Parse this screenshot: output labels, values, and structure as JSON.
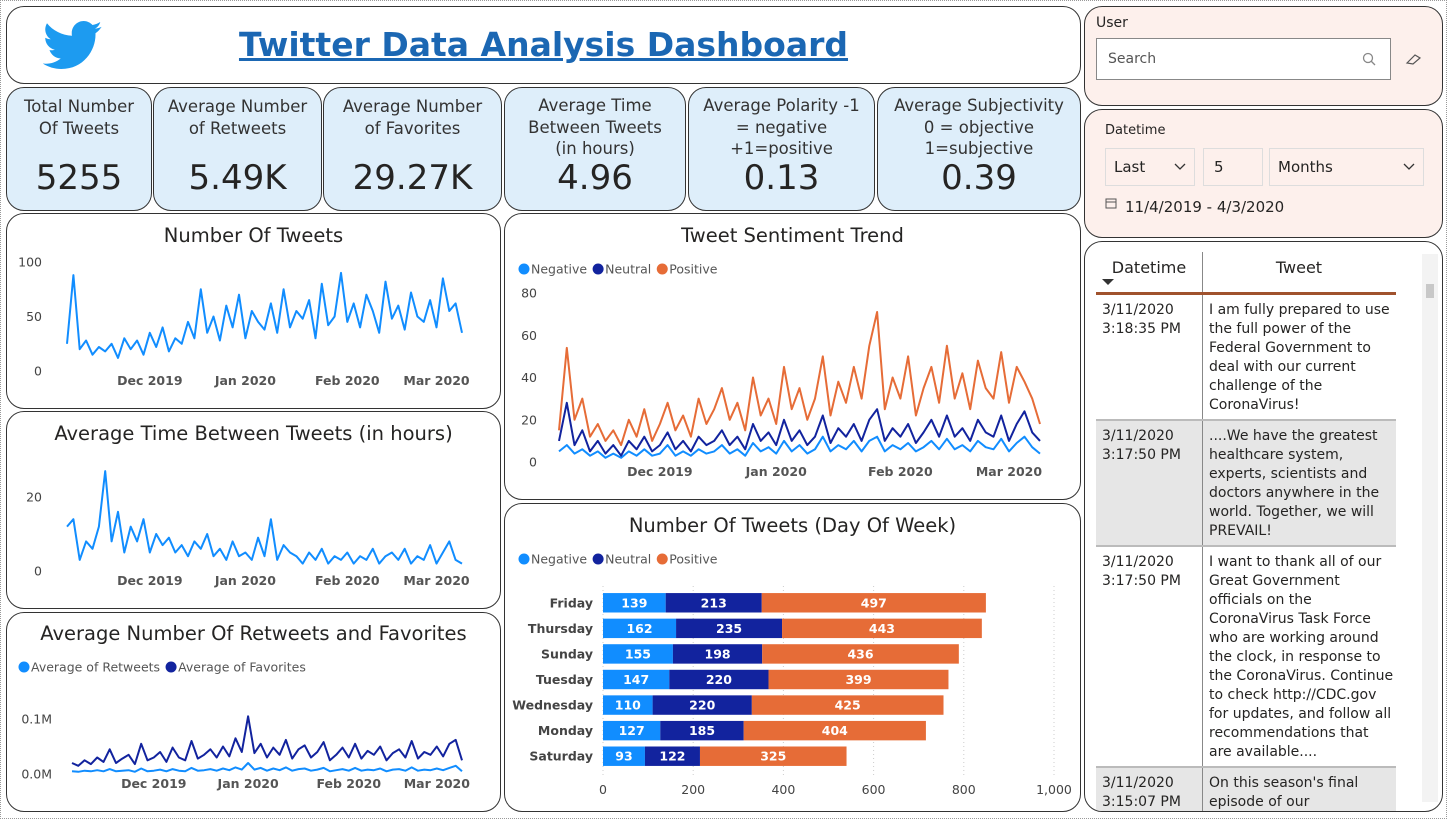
{
  "header": {
    "title": "Twitter Data Analysis Dashboard"
  },
  "kpis": [
    {
      "label": [
        "Total Number",
        "Of Tweets"
      ],
      "value": 5255
    },
    {
      "label": [
        "Average Number",
        "of Retweets"
      ],
      "value": "5.49K"
    },
    {
      "label": [
        "Average Number",
        "of Favorites"
      ],
      "value": "29.27K"
    },
    {
      "label": [
        "Average Time",
        "Between Tweets",
        "(in hours)"
      ],
      "value": 4.96
    },
    {
      "label": [
        "Average Polarity -1",
        "= negative",
        "+1=positive"
      ],
      "value": 0.13
    },
    {
      "label": [
        "Average Subjectivity",
        "0 = objective",
        "1=subjective"
      ],
      "value": 0.39
    }
  ],
  "filters": {
    "user": {
      "title": "User",
      "placeholder": "Search"
    },
    "datetime": {
      "title": "Datetime",
      "mode": "Last",
      "count": 5,
      "unit": "Months",
      "range": "11/4/2019 - 4/3/2020"
    }
  },
  "table": {
    "columns": [
      "Datetime",
      "Tweet"
    ],
    "rows": [
      [
        "3/11/2020 3:18:35 PM",
        "I am fully prepared to use the full power of the Federal Government to deal with our current challenge of the CoronaVirus!"
      ],
      [
        "3/11/2020 3:17:50 PM",
        "....We have the greatest healthcare system, experts, scientists and doctors anywhere in the world. Together, we will PREVAIL!"
      ],
      [
        "3/11/2020 3:17:50 PM",
        "I want to thank all of our Great Government officials on the CoronaVirus Task Force who are working around the clock, in response to the CoronaVirus. Continue to check http://CDC.gov for updates, and follow all recommendations that are available...."
      ],
      [
        "3/11/2020 3:15:07 PM",
        "On this season's final episode of our #NASAExplorers series:"
      ]
    ]
  },
  "chart_data": [
    {
      "type": "line",
      "title": "Number Of Tweets",
      "color": "#118dff",
      "categories": [
        null,
        null,
        null,
        null,
        null,
        null,
        null,
        null,
        null,
        null,
        null,
        null,
        null,
        "Dec 2019",
        null,
        null,
        null,
        null,
        null,
        null,
        null,
        null,
        null,
        null,
        null,
        null,
        null,
        null,
        "Jan 2020",
        null,
        null,
        null,
        null,
        null,
        null,
        null,
        null,
        null,
        null,
        null,
        null,
        null,
        null,
        null,
        "Feb 2020",
        null,
        null,
        null,
        null,
        null,
        null,
        null,
        null,
        null,
        null,
        null,
        null,
        null,
        "Mar 2020",
        null,
        null,
        null,
        null
      ],
      "values": [
        25,
        88,
        20,
        28,
        15,
        22,
        18,
        25,
        12,
        30,
        20,
        28,
        15,
        35,
        22,
        40,
        18,
        30,
        25,
        45,
        30,
        75,
        35,
        50,
        28,
        60,
        40,
        70,
        30,
        55,
        45,
        38,
        62,
        35,
        75,
        40,
        55,
        48,
        65,
        30,
        80,
        42,
        50,
        90,
        45,
        62,
        40,
        70,
        55,
        35,
        82,
        48,
        60,
        38,
        72,
        50,
        45,
        65,
        40,
        85,
        55,
        62,
        35
      ],
      "ylim": [
        0,
        100
      ],
      "yticks": [
        0,
        50,
        100
      ]
    },
    {
      "type": "line",
      "title": "Average Time Between Tweets (in hours)",
      "color": "#118dff",
      "categories": [
        null,
        null,
        null,
        null,
        null,
        null,
        null,
        null,
        null,
        null,
        null,
        null,
        null,
        "Dec 2019",
        null,
        null,
        null,
        null,
        null,
        null,
        null,
        null,
        null,
        null,
        null,
        null,
        null,
        null,
        "Jan 2020",
        null,
        null,
        null,
        null,
        null,
        null,
        null,
        null,
        null,
        null,
        null,
        null,
        null,
        null,
        null,
        "Feb 2020",
        null,
        null,
        null,
        null,
        null,
        null,
        null,
        null,
        null,
        null,
        null,
        null,
        null,
        "Mar 2020",
        null,
        null,
        null,
        null
      ],
      "values": [
        12,
        14,
        3,
        8,
        6,
        12,
        27,
        8,
        16,
        5,
        12,
        8,
        14,
        5,
        10,
        7,
        9,
        5,
        7,
        4,
        8,
        6,
        10,
        4,
        6,
        3,
        8,
        4,
        5,
        3,
        9,
        4,
        14,
        3,
        7,
        5,
        4,
        2,
        5,
        3,
        6,
        2,
        4,
        3,
        5,
        2,
        4,
        3,
        6,
        2,
        4,
        5,
        3,
        6,
        2,
        4,
        3,
        7,
        2,
        5,
        8,
        3,
        2
      ],
      "ylim": [
        0,
        30
      ],
      "yticks": [
        0,
        20
      ]
    },
    {
      "type": "line",
      "title": "Average Number Of Retweets and Favorites",
      "legend": "top-left",
      "categories": [
        null,
        null,
        null,
        null,
        null,
        null,
        null,
        null,
        null,
        null,
        null,
        null,
        null,
        "Dec 2019",
        null,
        null,
        null,
        null,
        null,
        null,
        null,
        null,
        null,
        null,
        null,
        null,
        null,
        null,
        "Jan 2020",
        null,
        null,
        null,
        null,
        null,
        null,
        null,
        null,
        null,
        null,
        null,
        null,
        null,
        null,
        null,
        "Feb 2020",
        null,
        null,
        null,
        null,
        null,
        null,
        null,
        null,
        null,
        null,
        null,
        null,
        null,
        "Mar 2020",
        null,
        null,
        null,
        null
      ],
      "series": [
        {
          "name": "Average of Retweets",
          "color": "#118dff",
          "values": [
            5000,
            4000,
            6000,
            5000,
            7000,
            5000,
            9000,
            5000,
            6000,
            7000,
            4000,
            10000,
            5000,
            6000,
            8000,
            5000,
            9000,
            6000,
            5000,
            11000,
            6000,
            7000,
            9000,
            6000,
            10000,
            7000,
            12000,
            8000,
            20000,
            8000,
            11000,
            6000,
            10000,
            7000,
            12000,
            6000,
            9000,
            10000,
            6000,
            8000,
            11000,
            5000,
            7000,
            9000,
            6000,
            11000,
            6000,
            8000,
            7000,
            10000,
            5000,
            8000,
            9000,
            6000,
            12000,
            6000,
            8000,
            7000,
            10000,
            7000,
            11000,
            15000,
            5000
          ]
        },
        {
          "name": "Average of Favorites",
          "color": "#12239e",
          "values": [
            20000,
            15000,
            25000,
            18000,
            30000,
            22000,
            45000,
            20000,
            28000,
            35000,
            18000,
            55000,
            25000,
            30000,
            40000,
            22000,
            48000,
            30000,
            25000,
            60000,
            28000,
            35000,
            45000,
            30000,
            50000,
            32000,
            65000,
            40000,
            105000,
            38000,
            55000,
            30000,
            48000,
            35000,
            62000,
            28000,
            45000,
            52000,
            30000,
            40000,
            58000,
            25000,
            35000,
            48000,
            30000,
            55000,
            28000,
            42000,
            35000,
            50000,
            25000,
            38000,
            45000,
            30000,
            60000,
            28000,
            40000,
            35000,
            50000,
            32000,
            55000,
            62000,
            25000
          ]
        }
      ],
      "ylim": [
        0,
        130000
      ],
      "yticks": [
        {
          "value": 0,
          "label": "0.0M"
        },
        {
          "value": 100000,
          "label": "0.1M"
        }
      ]
    },
    {
      "type": "line",
      "title": "Tweet Sentiment Trend",
      "legend": "top-left",
      "categories": [
        null,
        null,
        null,
        null,
        null,
        null,
        null,
        null,
        null,
        null,
        null,
        null,
        null,
        "Dec 2019",
        null,
        null,
        null,
        null,
        null,
        null,
        null,
        null,
        null,
        null,
        null,
        null,
        null,
        null,
        "Jan 2020",
        null,
        null,
        null,
        null,
        null,
        null,
        null,
        null,
        null,
        null,
        null,
        null,
        null,
        null,
        null,
        "Feb 2020",
        null,
        null,
        null,
        null,
        null,
        null,
        null,
        null,
        null,
        null,
        null,
        null,
        null,
        "Mar 2020",
        null,
        null,
        null,
        null
      ],
      "series": [
        {
          "name": "Negative",
          "color": "#118dff",
          "values": [
            5,
            8,
            4,
            6,
            3,
            5,
            2,
            4,
            2,
            5,
            3,
            6,
            3,
            4,
            8,
            3,
            5,
            3,
            6,
            4,
            5,
            8,
            4,
            6,
            3,
            9,
            5,
            7,
            4,
            10,
            5,
            8,
            4,
            6,
            12,
            5,
            8,
            6,
            10,
            5,
            10,
            12,
            5,
            8,
            6,
            9,
            5,
            7,
            10,
            6,
            11,
            6,
            8,
            5,
            10,
            7,
            6,
            11,
            5,
            9,
            12,
            7,
            4
          ]
        },
        {
          "name": "Neutral",
          "color": "#12239e",
          "values": [
            10,
            28,
            8,
            15,
            5,
            10,
            4,
            8,
            3,
            10,
            6,
            12,
            5,
            8,
            14,
            6,
            10,
            5,
            12,
            8,
            10,
            15,
            8,
            12,
            6,
            18,
            10,
            14,
            8,
            20,
            10,
            15,
            8,
            12,
            22,
            9,
            16,
            12,
            18,
            10,
            20,
            25,
            10,
            16,
            12,
            18,
            9,
            14,
            20,
            12,
            22,
            12,
            16,
            10,
            20,
            14,
            12,
            22,
            10,
            18,
            24,
            14,
            10
          ]
        },
        {
          "name": "Positive",
          "color": "#e66c37",
          "values": [
            15,
            54,
            20,
            30,
            12,
            18,
            10,
            15,
            8,
            20,
            12,
            25,
            10,
            18,
            28,
            15,
            22,
            12,
            30,
            18,
            25,
            35,
            20,
            28,
            15,
            40,
            22,
            30,
            18,
            45,
            25,
            35,
            20,
            30,
            50,
            22,
            38,
            28,
            45,
            30,
            55,
            71,
            25,
            40,
            30,
            50,
            22,
            35,
            45,
            28,
            55,
            30,
            42,
            25,
            48,
            35,
            30,
            52,
            28,
            45,
            38,
            30,
            18
          ]
        }
      ],
      "ylim": [
        0,
        80
      ],
      "yticks": [
        0,
        20,
        40,
        60,
        80
      ]
    },
    {
      "type": "bar",
      "orientation": "horizontal",
      "stacked": true,
      "title": "Number Of Tweets (Day Of Week)",
      "legend": "top-left",
      "grid": true,
      "categories": [
        "Friday",
        "Thursday",
        "Sunday",
        "Tuesday",
        "Wednesday",
        "Monday",
        "Saturday"
      ],
      "series": [
        {
          "name": "Negative",
          "color": "#118dff",
          "values": [
            139,
            162,
            155,
            147,
            110,
            127,
            93
          ]
        },
        {
          "name": "Neutral",
          "color": "#12239e",
          "values": [
            213,
            235,
            198,
            220,
            220,
            185,
            122
          ]
        },
        {
          "name": "Positive",
          "color": "#e66c37",
          "values": [
            497,
            443,
            436,
            399,
            425,
            404,
            325
          ]
        }
      ],
      "xlim": [
        0,
        1000
      ],
      "xticks": [
        0,
        200,
        400,
        600,
        800,
        {
          "value": 1000,
          "label": "1,000"
        }
      ]
    }
  ]
}
